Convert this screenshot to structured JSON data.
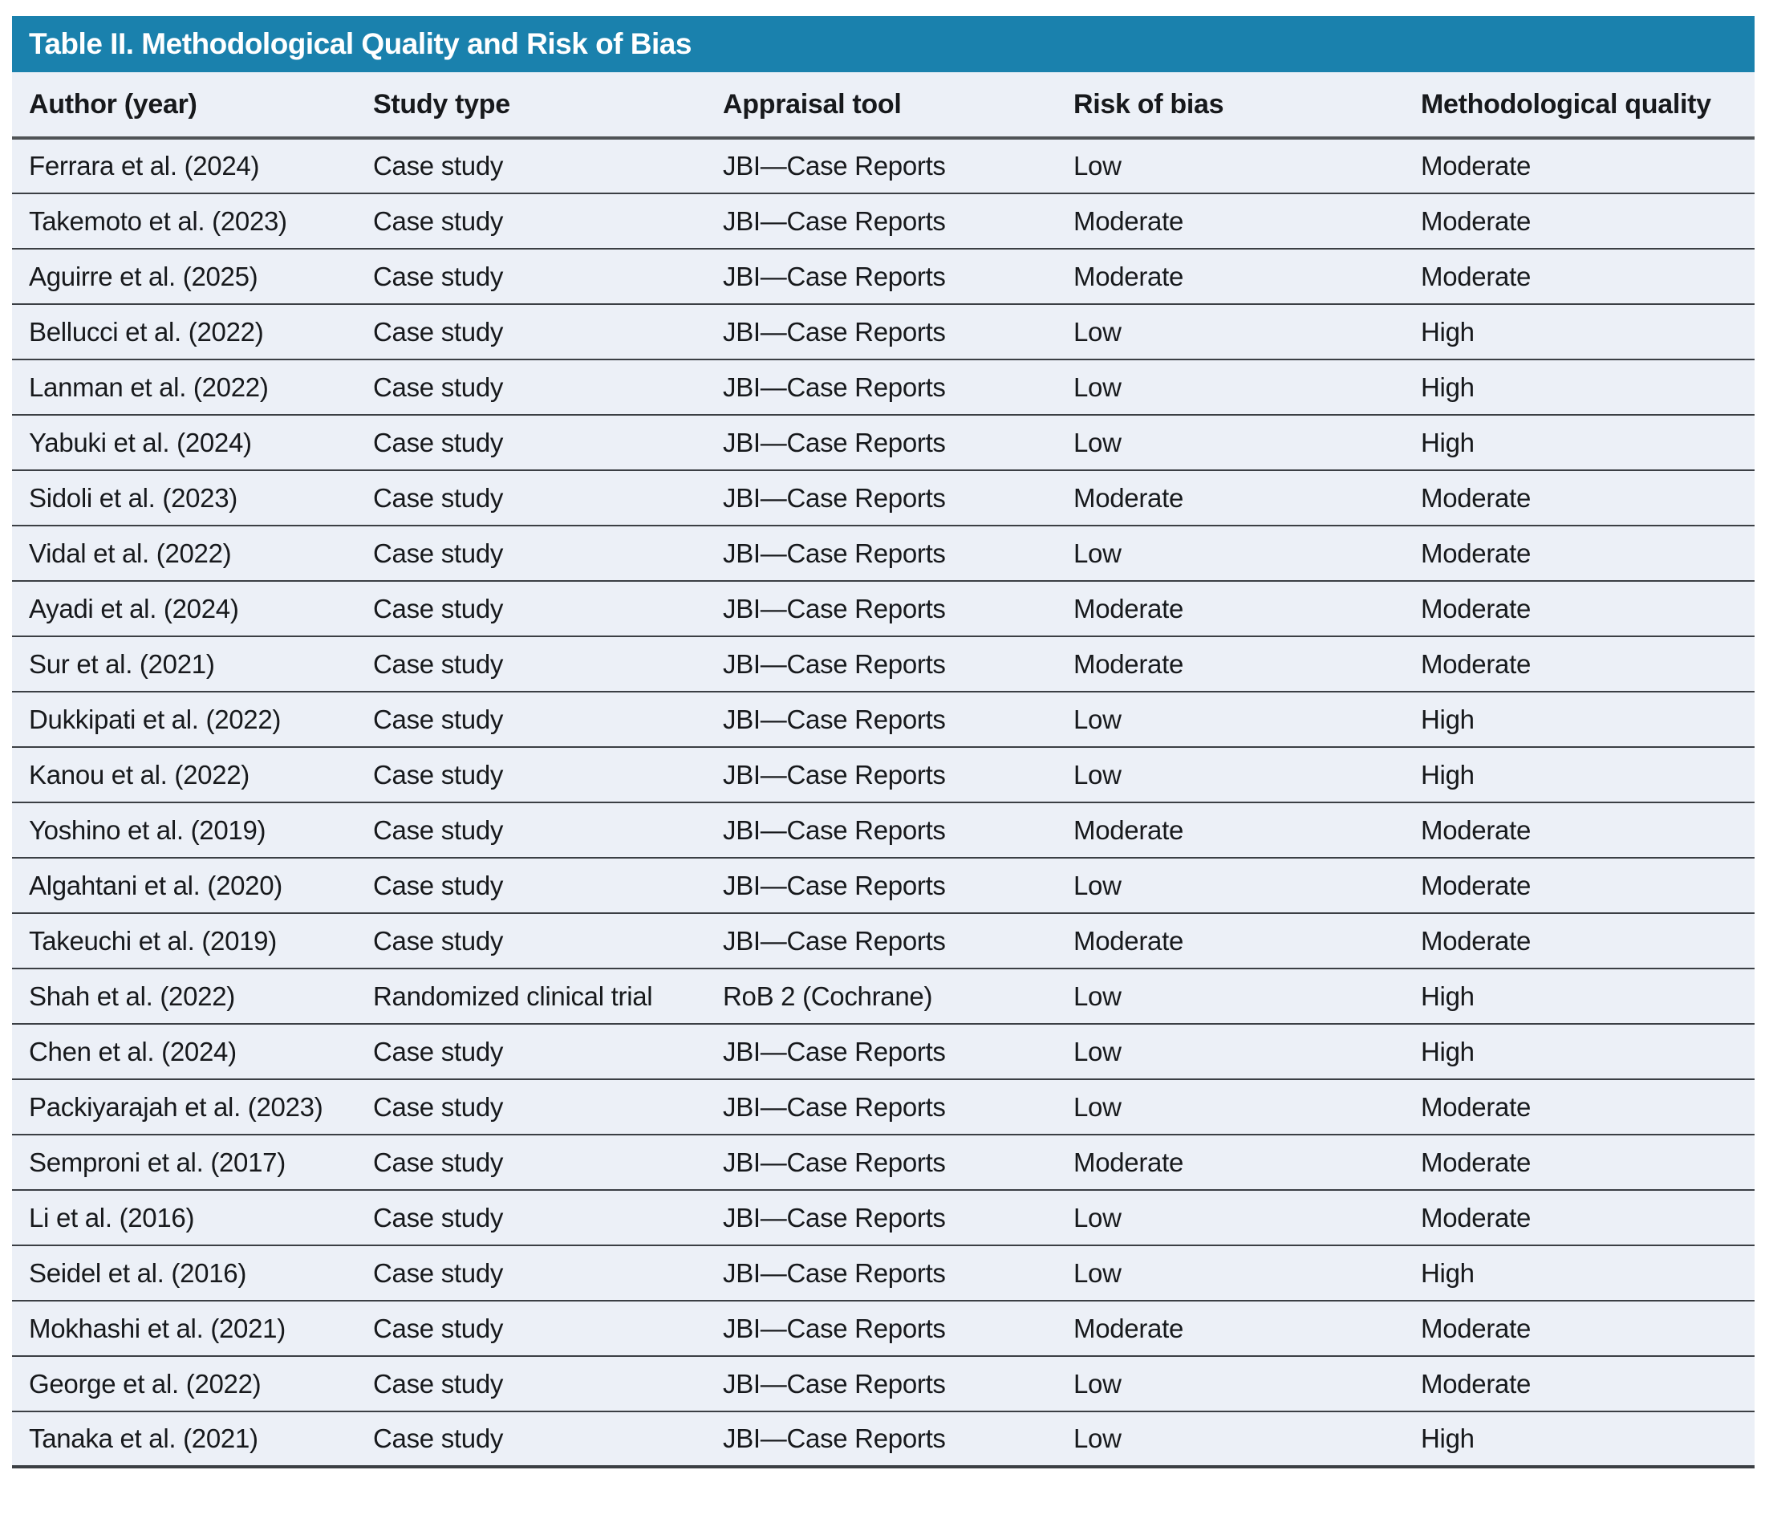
{
  "table": {
    "title": "Table II. Methodological Quality and Risk of Bias",
    "columns": [
      "Author (year)",
      "Study type",
      "Appraisal tool",
      "Risk of bias",
      "Methodological quality"
    ],
    "rows": [
      {
        "author": "Ferrara et al. (2024)",
        "study_type": "Case study",
        "appraisal_tool": "JBI—Case Reports",
        "risk_of_bias": "Low",
        "methodological_quality": "Moderate"
      },
      {
        "author": "Takemoto et al. (2023)",
        "study_type": "Case study",
        "appraisal_tool": "JBI—Case Reports",
        "risk_of_bias": "Moderate",
        "methodological_quality": "Moderate"
      },
      {
        "author": "Aguirre et al. (2025)",
        "study_type": "Case study",
        "appraisal_tool": "JBI—Case Reports",
        "risk_of_bias": "Moderate",
        "methodological_quality": "Moderate"
      },
      {
        "author": "Bellucci et al. (2022)",
        "study_type": "Case study",
        "appraisal_tool": "JBI—Case Reports",
        "risk_of_bias": "Low",
        "methodological_quality": "High"
      },
      {
        "author": "Lanman et al. (2022)",
        "study_type": "Case study",
        "appraisal_tool": "JBI—Case Reports",
        "risk_of_bias": "Low",
        "methodological_quality": "High"
      },
      {
        "author": "Yabuki et al. (2024)",
        "study_type": "Case study",
        "appraisal_tool": "JBI—Case Reports",
        "risk_of_bias": "Low",
        "methodological_quality": "High"
      },
      {
        "author": "Sidoli et al. (2023)",
        "study_type": "Case study",
        "appraisal_tool": "JBI—Case Reports",
        "risk_of_bias": "Moderate",
        "methodological_quality": "Moderate"
      },
      {
        "author": "Vidal et al. (2022)",
        "study_type": "Case study",
        "appraisal_tool": "JBI—Case Reports",
        "risk_of_bias": "Low",
        "methodological_quality": "Moderate"
      },
      {
        "author": "Ayadi et al. (2024)",
        "study_type": "Case study",
        "appraisal_tool": "JBI—Case Reports",
        "risk_of_bias": "Moderate",
        "methodological_quality": "Moderate"
      },
      {
        "author": "Sur et al. (2021)",
        "study_type": "Case study",
        "appraisal_tool": "JBI—Case Reports",
        "risk_of_bias": "Moderate",
        "methodological_quality": "Moderate"
      },
      {
        "author": "Dukkipati et al. (2022)",
        "study_type": "Case study",
        "appraisal_tool": "JBI—Case Reports",
        "risk_of_bias": "Low",
        "methodological_quality": "High"
      },
      {
        "author": "Kanou et al. (2022)",
        "study_type": "Case study",
        "appraisal_tool": "JBI—Case Reports",
        "risk_of_bias": "Low",
        "methodological_quality": "High"
      },
      {
        "author": "Yoshino et al. (2019)",
        "study_type": "Case study",
        "appraisal_tool": "JBI—Case Reports",
        "risk_of_bias": "Moderate",
        "methodological_quality": "Moderate"
      },
      {
        "author": "Algahtani et al. (2020)",
        "study_type": "Case study",
        "appraisal_tool": "JBI—Case Reports",
        "risk_of_bias": "Low",
        "methodological_quality": "Moderate"
      },
      {
        "author": "Takeuchi et al. (2019)",
        "study_type": "Case study",
        "appraisal_tool": "JBI—Case Reports",
        "risk_of_bias": "Moderate",
        "methodological_quality": "Moderate"
      },
      {
        "author": "Shah et al. (2022)",
        "study_type": "Randomized clinical trial",
        "appraisal_tool": "RoB 2 (Cochrane)",
        "risk_of_bias": "Low",
        "methodological_quality": "High"
      },
      {
        "author": "Chen et al. (2024)",
        "study_type": "Case study",
        "appraisal_tool": "JBI—Case Reports",
        "risk_of_bias": "Low",
        "methodological_quality": "High"
      },
      {
        "author": "Packiyarajah et al. (2023)",
        "study_type": "Case study",
        "appraisal_tool": "JBI—Case Reports",
        "risk_of_bias": "Low",
        "methodological_quality": "Moderate"
      },
      {
        "author": "Semproni et al. (2017)",
        "study_type": "Case study",
        "appraisal_tool": "JBI—Case Reports",
        "risk_of_bias": "Moderate",
        "methodological_quality": "Moderate"
      },
      {
        "author": "Li et al. (2016)",
        "study_type": "Case study",
        "appraisal_tool": "JBI—Case Reports",
        "risk_of_bias": "Low",
        "methodological_quality": "Moderate"
      },
      {
        "author": "Seidel et al. (2016)",
        "study_type": "Case study",
        "appraisal_tool": "JBI—Case Reports",
        "risk_of_bias": "Low",
        "methodological_quality": "High"
      },
      {
        "author": "Mokhashi et al. (2021)",
        "study_type": "Case study",
        "appraisal_tool": "JBI—Case Reports",
        "risk_of_bias": "Moderate",
        "methodological_quality": "Moderate"
      },
      {
        "author": "George et al. (2022)",
        "study_type": "Case study",
        "appraisal_tool": "JBI—Case Reports",
        "risk_of_bias": "Low",
        "methodological_quality": "Moderate"
      },
      {
        "author": "Tanaka et al. (2021)",
        "study_type": "Case study",
        "appraisal_tool": "JBI—Case Reports",
        "risk_of_bias": "Low",
        "methodological_quality": "High"
      }
    ]
  },
  "colors": {
    "title_bar_bg": "#1a81ad",
    "title_text": "#ffffff",
    "row_bg": "#ecf0f7",
    "rule_dark": "#3b3f44",
    "rule_header": "#4f5356",
    "body_text": "#17191c"
  }
}
